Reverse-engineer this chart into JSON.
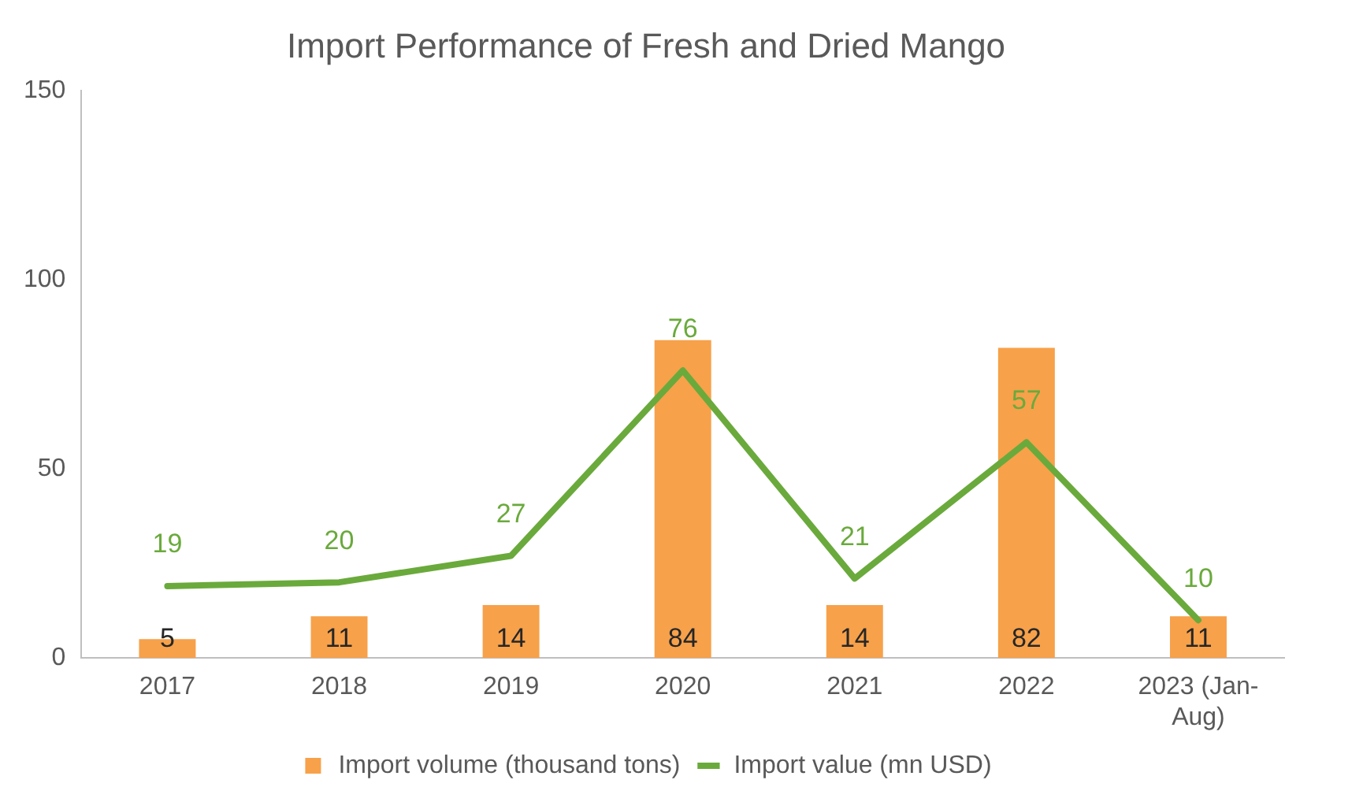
{
  "chart_data": {
    "type": "bar",
    "title": "Import Performance of Fresh and Dried Mango",
    "categories": [
      "2017",
      "2018",
      "2019",
      "2020",
      "2021",
      "2022",
      "2023 (Jan-Aug)"
    ],
    "series": [
      {
        "name": "Import volume (thousand tons)",
        "color": "#f7a14a",
        "values": [
          5,
          11,
          14,
          84,
          14,
          82,
          11
        ]
      },
      {
        "name": "Import value (mn USD)",
        "type": "line",
        "color": "#6aaa3c",
        "values": [
          19,
          20,
          27,
          76,
          21,
          57,
          10
        ]
      }
    ],
    "ylim": [
      0,
      150
    ],
    "yticks": [
      0,
      50,
      100,
      150
    ],
    "grid": false,
    "legend": "bottom",
    "marker": "none",
    "line_style": "solid",
    "data_labels": true
  }
}
